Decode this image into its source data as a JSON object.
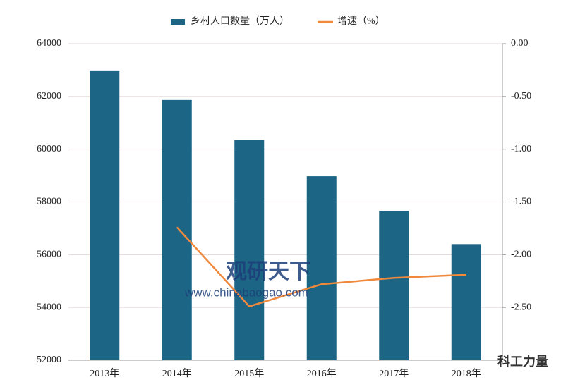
{
  "chart_data": {
    "type": "bar",
    "categories": [
      "2013年",
      "2014年",
      "2015年",
      "2016年",
      "2017年",
      "2018年"
    ],
    "series": [
      {
        "name": "乡村人口数量（万人）",
        "type": "bar",
        "color": "#1c6585",
        "values": [
          62961,
          61866,
          60346,
          58973,
          57661,
          56401
        ]
      },
      {
        "name": "增速（%）",
        "type": "line",
        "axis": "y2",
        "color": "#f0893c",
        "values": [
          null,
          -1.74,
          -2.49,
          -2.28,
          -2.22,
          -2.19
        ]
      }
    ],
    "ylim": [
      52000,
      64000
    ],
    "yticks": [
      52000,
      54000,
      56000,
      58000,
      60000,
      62000,
      64000
    ],
    "y2lim": [
      -3,
      0
    ],
    "y2ticks": [
      {
        "value": -2.5,
        "label": "-2.50"
      },
      {
        "value": -2,
        "label": "-2.00"
      },
      {
        "value": -1.5,
        "label": "-1.50"
      },
      {
        "value": -1,
        "label": "-1.00"
      },
      {
        "value": -0.5,
        "label": "-0.50"
      },
      {
        "value": 0,
        "label": "0.00"
      }
    ],
    "grid": true,
    "legend": "top",
    "annotations": [
      "观研天下",
      "www.chinabaogao.com",
      "科工力量"
    ]
  }
}
